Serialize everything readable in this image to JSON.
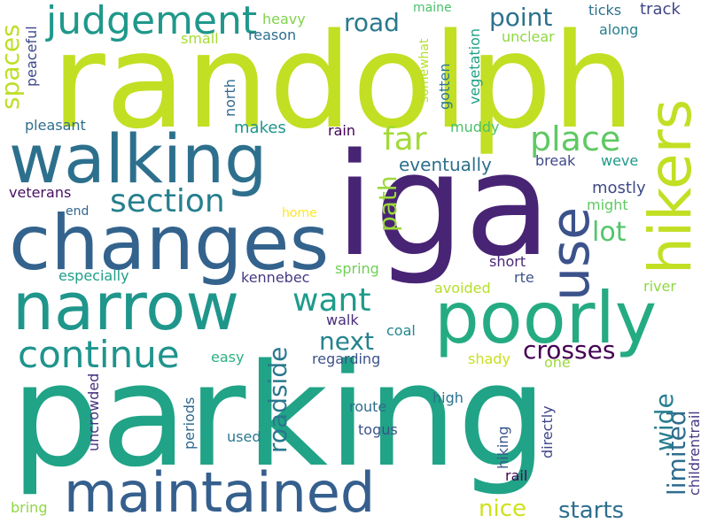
{
  "words": [
    {
      "text": "randolph",
      "color": "#c2df23"
    },
    {
      "text": "parking",
      "color": "#20a386"
    },
    {
      "text": "iga",
      "color": "#482475"
    },
    {
      "text": "walking",
      "color": "#2d708e"
    },
    {
      "text": "changes",
      "color": "#33638d"
    },
    {
      "text": "narrow",
      "color": "#1f968b"
    },
    {
      "text": "poorly",
      "color": "#25ab82"
    },
    {
      "text": "maintained",
      "color": "#355f8d"
    },
    {
      "text": "hikers",
      "color": "#c2df23"
    },
    {
      "text": "use",
      "color": "#3b528b"
    },
    {
      "text": "judgement",
      "color": "#1f988b"
    },
    {
      "text": "continue",
      "color": "#1f948c"
    },
    {
      "text": "section",
      "color": "#277f8e"
    },
    {
      "text": "place",
      "color": "#5ec962"
    },
    {
      "text": "far",
      "color": "#a2da37"
    },
    {
      "text": "want",
      "color": "#1e9b8a"
    },
    {
      "text": "point",
      "color": "#2c728e"
    },
    {
      "text": "road",
      "color": "#297a8e"
    },
    {
      "text": "crosses",
      "color": "#440154"
    },
    {
      "text": "next",
      "color": "#25838e"
    },
    {
      "text": "roadside",
      "color": "#2a788e"
    },
    {
      "text": "limited",
      "color": "#2f6c8e"
    },
    {
      "text": "wide",
      "color": "#277e8e"
    },
    {
      "text": "lot",
      "color": "#52c569"
    },
    {
      "text": "path",
      "color": "#9dd93b"
    },
    {
      "text": "spaces",
      "color": "#bddf26"
    },
    {
      "text": "nice",
      "color": "#d0e11c"
    },
    {
      "text": "starts",
      "color": "#2e6f8e"
    },
    {
      "text": "eventually",
      "color": "#2d708e"
    },
    {
      "text": "mostly",
      "color": "#3e4a89"
    },
    {
      "text": "track",
      "color": "#404688"
    },
    {
      "text": "ticks",
      "color": "#2d718e"
    },
    {
      "text": "along",
      "color": "#277f8e"
    },
    {
      "text": "unclear",
      "color": "#8fd744"
    },
    {
      "text": "heavy",
      "color": "#81d34d"
    },
    {
      "text": "maine",
      "color": "#4ac16d"
    },
    {
      "text": "reason",
      "color": "#2e6e8e"
    },
    {
      "text": "small",
      "color": "#a8db34"
    },
    {
      "text": "somewhat",
      "color": "#b5de2b"
    },
    {
      "text": "gotten",
      "color": "#2a778e"
    },
    {
      "text": "vegetation",
      "color": "#1fa088"
    },
    {
      "text": "muddy",
      "color": "#4ac16d"
    },
    {
      "text": "makes",
      "color": "#1f958b"
    },
    {
      "text": "north",
      "color": "#31688e"
    },
    {
      "text": "pleasant",
      "color": "#2e6e8e"
    },
    {
      "text": "peaceful",
      "color": "#3e4989"
    },
    {
      "text": "rain",
      "color": "#440154"
    },
    {
      "text": "break",
      "color": "#3f4889"
    },
    {
      "text": "weve",
      "color": "#1f9a8a"
    },
    {
      "text": "veterans",
      "color": "#471063"
    },
    {
      "text": "end",
      "color": "#32658e"
    },
    {
      "text": "home",
      "color": "#fde725"
    },
    {
      "text": "might",
      "color": "#5ec962"
    },
    {
      "text": "spring",
      "color": "#70cf57"
    },
    {
      "text": "especially",
      "color": "#1f9f88"
    },
    {
      "text": "kennebec",
      "color": "#443a83"
    },
    {
      "text": "short",
      "color": "#482878"
    },
    {
      "text": "rte",
      "color": "#3b528b"
    },
    {
      "text": "river",
      "color": "#8fd744"
    },
    {
      "text": "avoided",
      "color": "#b5de2b"
    },
    {
      "text": "walk",
      "color": "#472d7b"
    },
    {
      "text": "coal",
      "color": "#24878e"
    },
    {
      "text": "regarding",
      "color": "#3b528b"
    },
    {
      "text": "shady",
      "color": "#c8e020"
    },
    {
      "text": "easy",
      "color": "#2ab07f"
    },
    {
      "text": "one",
      "color": "#9dd93b"
    },
    {
      "text": "childrentrail",
      "color": "#443a83"
    },
    {
      "text": "uncrowded",
      "color": "#46307e"
    },
    {
      "text": "periods",
      "color": "#31688e"
    },
    {
      "text": "used",
      "color": "#2a788e"
    },
    {
      "text": "high",
      "color": "#2c728e"
    },
    {
      "text": "route",
      "color": "#2e6d8e"
    },
    {
      "text": "togus",
      "color": "#3b528b"
    },
    {
      "text": "hiking",
      "color": "#39568c"
    },
    {
      "text": "directly",
      "color": "#404588"
    },
    {
      "text": "rail",
      "color": "#440154"
    },
    {
      "text": "bring",
      "color": "#8fd744"
    }
  ]
}
